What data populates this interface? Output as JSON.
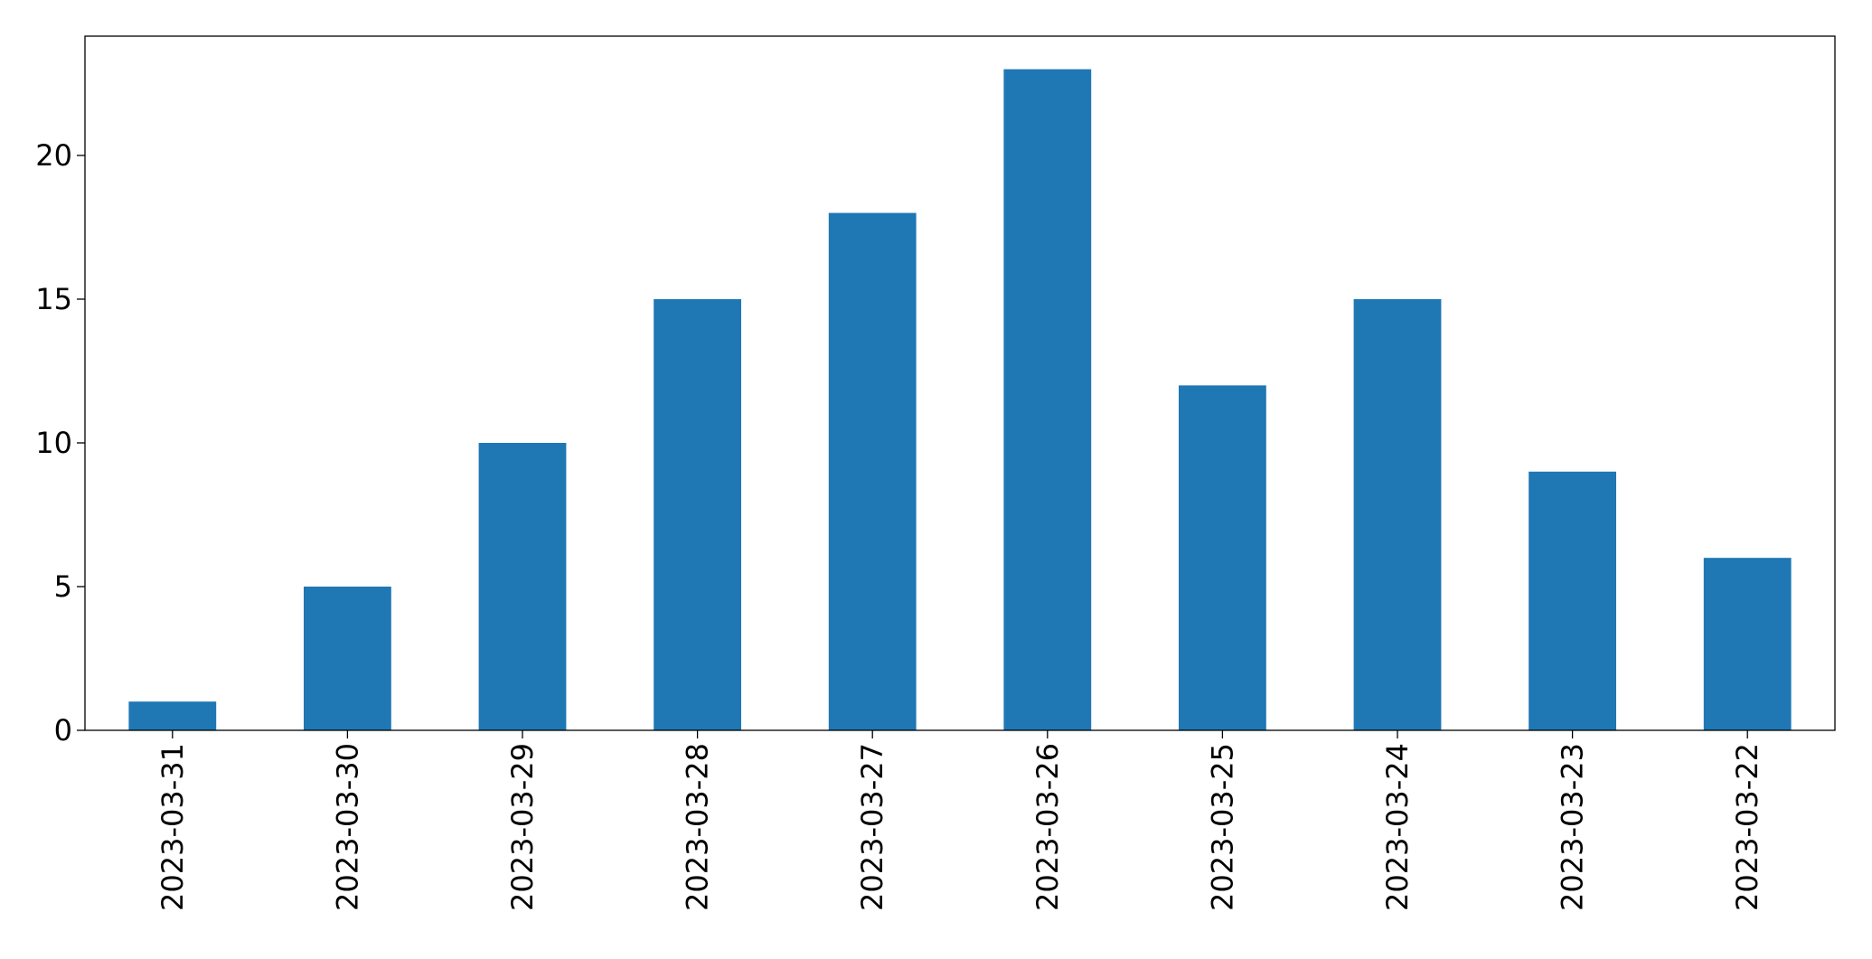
{
  "chart_data": {
    "type": "bar",
    "categories": [
      "2023-03-31",
      "2023-03-30",
      "2023-03-29",
      "2023-03-28",
      "2023-03-27",
      "2023-03-26",
      "2023-03-25",
      "2023-03-24",
      "2023-03-23",
      "2023-03-22"
    ],
    "values": [
      1,
      5,
      10,
      15,
      18,
      23,
      12,
      15,
      9,
      6
    ],
    "color": "#1f77b4",
    "ylim": [
      0,
      24.15
    ],
    "yticks": [
      0,
      5,
      10,
      15,
      20
    ],
    "grid": false
  }
}
